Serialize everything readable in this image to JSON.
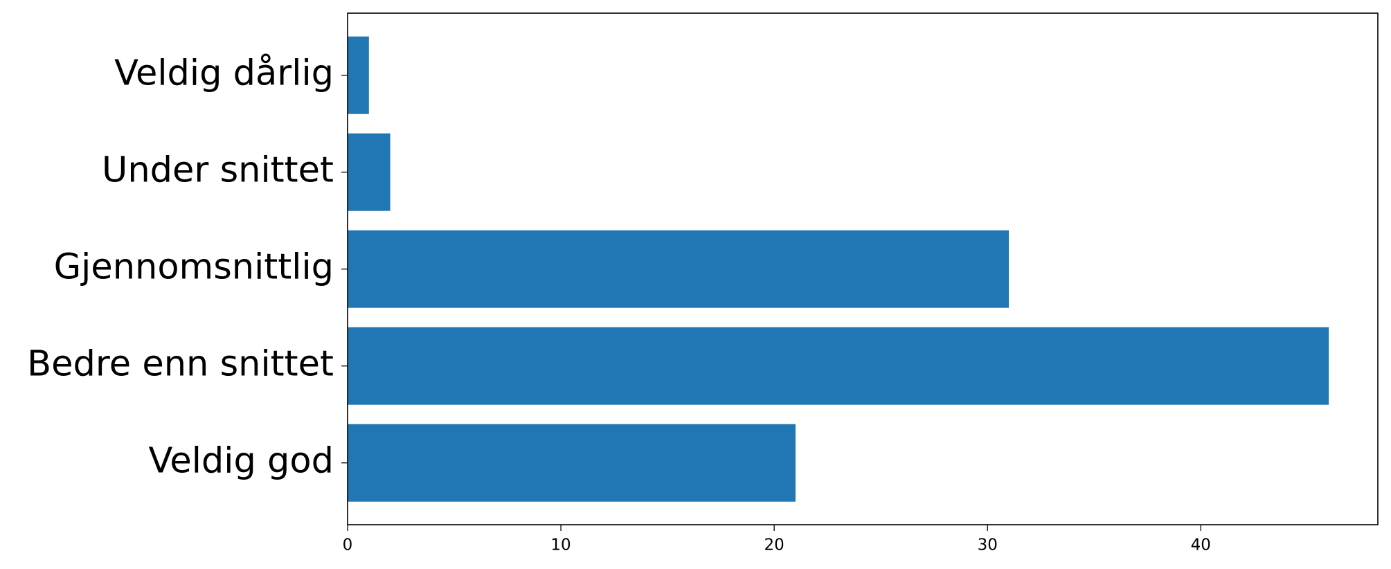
{
  "chart_data": {
    "type": "barh",
    "categories": [
      "Veldig dårlig",
      "Under snittet",
      "Gjennomsnittlig",
      "Bedre enn snittet",
      "Veldig god"
    ],
    "values": [
      1,
      2,
      31,
      46,
      21
    ],
    "color": "#2077b4",
    "xlim": [
      0,
      48.3
    ],
    "xticks": [
      0,
      10,
      20,
      30,
      40
    ],
    "grid": false
  }
}
